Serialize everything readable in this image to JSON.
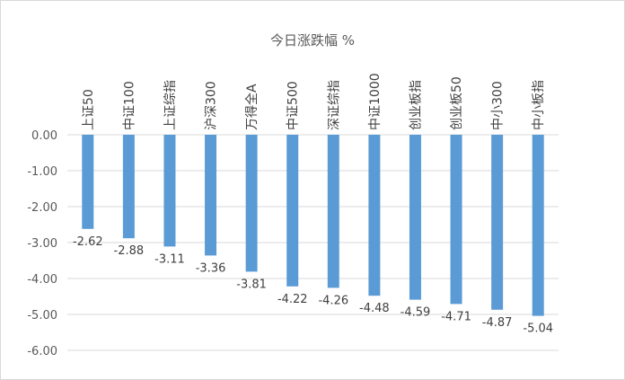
{
  "chart_data": {
    "type": "bar",
    "title": "今日涨跌幅 %",
    "xlabel": "",
    "ylabel": "",
    "categories": [
      "上证50",
      "中证100",
      "上证综指",
      "沪深300",
      "万得全A",
      "中证500",
      "深证综指",
      "中证1000",
      "创业板指",
      "创业板50",
      "中小300",
      "中小板指"
    ],
    "values": [
      -2.62,
      -2.88,
      -3.11,
      -3.36,
      -3.81,
      -4.22,
      -4.26,
      -4.48,
      -4.59,
      -4.71,
      -4.87,
      -5.04
    ],
    "data_labels": [
      "-2.62",
      "-2.88",
      "-3.11",
      "-3.36",
      "-3.81",
      "-4.22",
      "-4.26",
      "-4.48",
      "-4.59",
      "-4.71",
      "-4.87",
      "-5.04"
    ],
    "ylim": [
      -6,
      0
    ],
    "yticks": [
      "0.00",
      "-1.00",
      "-2.00",
      "-3.00",
      "-4.00",
      "-5.00",
      "-6.00"
    ],
    "grid": true,
    "legend": "none",
    "bar_color": "#5b9bd5"
  }
}
